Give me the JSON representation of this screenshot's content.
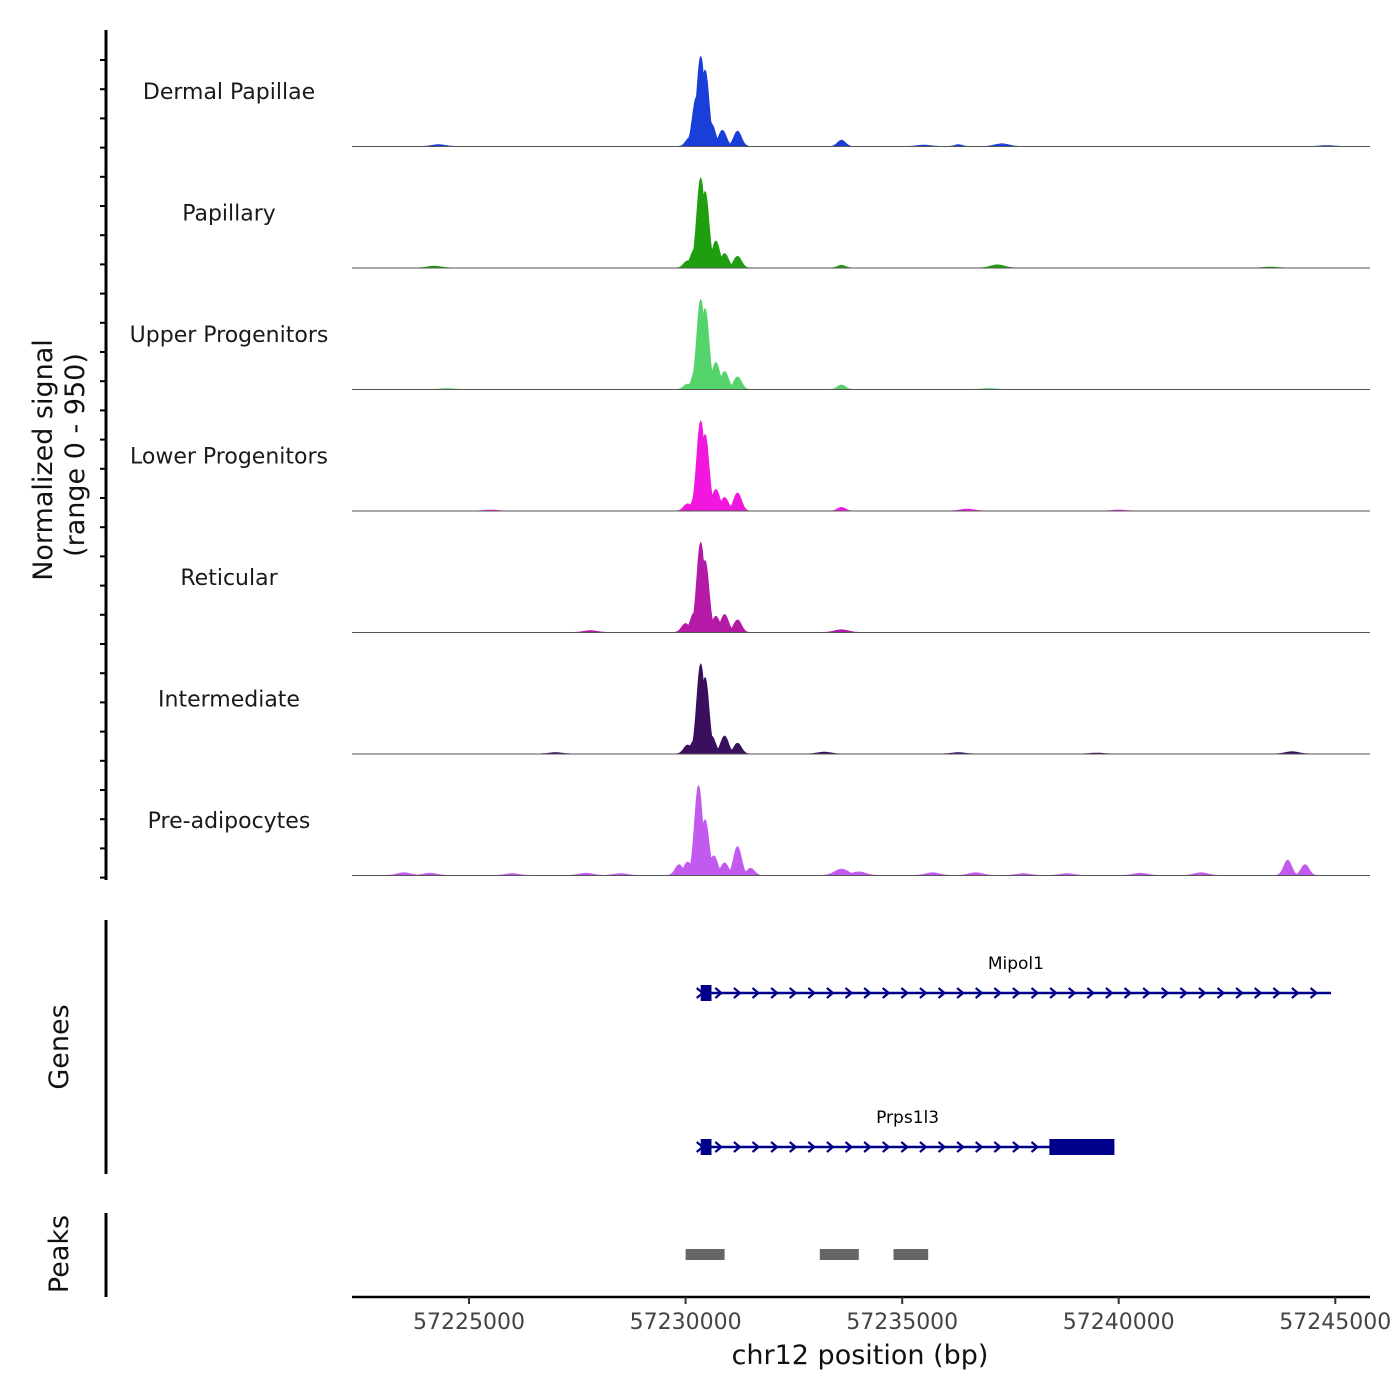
{
  "chart_data": {
    "type": "area",
    "title": "",
    "xlabel": "chr12 position (bp)",
    "ylabel_line1": "Normalized signal",
    "ylabel_line2": "(range 0 - 950)",
    "xlim": [
      57222300,
      57245800
    ],
    "x_ticks": [
      57225000,
      57230000,
      57235000,
      57240000,
      57245000
    ],
    "x_tick_labels": [
      "57225000",
      "57230000",
      "57235000",
      "57240000",
      "57245000"
    ],
    "ylim": [
      0,
      950
    ],
    "tracks": [
      {
        "name": "Dermal Papillae",
        "color": "#1a3fd9",
        "background_peaks": [
          [
            57224300,
            0.02
          ],
          [
            57235500,
            0.015
          ],
          [
            57237300,
            0.03
          ],
          [
            57244800,
            0.01
          ]
        ],
        "peaks": [
          [
            57230100,
            0.1
          ],
          [
            57230250,
            0.55
          ],
          [
            57230350,
            1.0
          ],
          [
            57230450,
            0.85
          ],
          [
            57230600,
            0.25
          ],
          [
            57230850,
            0.18
          ],
          [
            57231200,
            0.17
          ],
          [
            57233600,
            0.07
          ],
          [
            57236300,
            0.02
          ]
        ]
      },
      {
        "name": "Papillary",
        "color": "#1f9e0f",
        "background_peaks": [
          [
            57224200,
            0.02
          ],
          [
            57237200,
            0.035
          ],
          [
            57243500,
            0.01
          ]
        ],
        "peaks": [
          [
            57230050,
            0.08
          ],
          [
            57230200,
            0.2
          ],
          [
            57230350,
            1.0
          ],
          [
            57230450,
            0.85
          ],
          [
            57230700,
            0.3
          ],
          [
            57230900,
            0.16
          ],
          [
            57231200,
            0.13
          ],
          [
            57233600,
            0.03
          ]
        ]
      },
      {
        "name": "Upper Progenitors",
        "color": "#55d46b",
        "background_peaks": [
          [
            57224500,
            0.01
          ],
          [
            57237000,
            0.01
          ]
        ],
        "peaks": [
          [
            57230050,
            0.06
          ],
          [
            57230250,
            0.25
          ],
          [
            57230350,
            1.0
          ],
          [
            57230450,
            0.9
          ],
          [
            57230700,
            0.3
          ],
          [
            57230900,
            0.2
          ],
          [
            57231200,
            0.14
          ],
          [
            57233600,
            0.05
          ]
        ]
      },
      {
        "name": "Lower Progenitors",
        "color": "#f217de",
        "background_peaks": [
          [
            57225500,
            0.01
          ],
          [
            57236500,
            0.02
          ],
          [
            57240000,
            0.01
          ]
        ],
        "peaks": [
          [
            57230050,
            0.08
          ],
          [
            57230250,
            0.2
          ],
          [
            57230350,
            1.0
          ],
          [
            57230450,
            0.85
          ],
          [
            57230700,
            0.24
          ],
          [
            57230900,
            0.15
          ],
          [
            57231200,
            0.2
          ],
          [
            57233600,
            0.04
          ]
        ]
      },
      {
        "name": "Reticular",
        "color": "#b41aa6",
        "background_peaks": [
          [
            57227800,
            0.02
          ],
          [
            57233600,
            0.03
          ]
        ],
        "peaks": [
          [
            57230000,
            0.1
          ],
          [
            57230200,
            0.22
          ],
          [
            57230350,
            1.0
          ],
          [
            57230450,
            0.8
          ],
          [
            57230700,
            0.18
          ],
          [
            57230900,
            0.2
          ],
          [
            57231200,
            0.14
          ]
        ]
      },
      {
        "name": "Intermediate",
        "color": "#3a0f5e",
        "background_peaks": [
          [
            57227000,
            0.015
          ],
          [
            57233200,
            0.02
          ],
          [
            57236300,
            0.015
          ],
          [
            57239500,
            0.01
          ],
          [
            57244000,
            0.025
          ]
        ],
        "peaks": [
          [
            57230050,
            0.1
          ],
          [
            57230200,
            0.15
          ],
          [
            57230350,
            1.0
          ],
          [
            57230450,
            0.85
          ],
          [
            57230600,
            0.2
          ],
          [
            57230900,
            0.2
          ],
          [
            57231200,
            0.12
          ]
        ]
      },
      {
        "name": "Pre-adipocytes",
        "color": "#c35af0",
        "background_peaks": [
          [
            57223500,
            0.03
          ],
          [
            57224100,
            0.025
          ],
          [
            57226000,
            0.02
          ],
          [
            57227700,
            0.025
          ],
          [
            57228500,
            0.02
          ],
          [
            57233600,
            0.07
          ],
          [
            57234000,
            0.04
          ],
          [
            57235700,
            0.03
          ],
          [
            57236700,
            0.03
          ],
          [
            57237800,
            0.02
          ],
          [
            57238800,
            0.02
          ],
          [
            57240500,
            0.025
          ],
          [
            57241900,
            0.03
          ]
        ],
        "peaks": [
          [
            57229850,
            0.12
          ],
          [
            57230050,
            0.15
          ],
          [
            57230300,
            1.0
          ],
          [
            57230450,
            0.62
          ],
          [
            57230650,
            0.22
          ],
          [
            57230900,
            0.14
          ],
          [
            57231200,
            0.32
          ],
          [
            57231500,
            0.08
          ],
          [
            57243900,
            0.17
          ],
          [
            57244300,
            0.12
          ]
        ]
      }
    ],
    "genes_label": "Genes",
    "genes": [
      {
        "name": "Mipol1",
        "start": 57230350,
        "end": 57244900,
        "strand": "+",
        "exons": [
          [
            57230350,
            57230600
          ]
        ]
      },
      {
        "name": "Prps1l3",
        "start": 57230350,
        "end": 57239900,
        "strand": "+",
        "exons": [
          [
            57230350,
            57230600
          ],
          [
            57238400,
            57239900
          ]
        ]
      }
    ],
    "peaks_label": "Peaks",
    "peaks": [
      [
        57230000,
        57230900
      ],
      [
        57233100,
        57234000
      ],
      [
        57234800,
        57235600
      ]
    ]
  }
}
